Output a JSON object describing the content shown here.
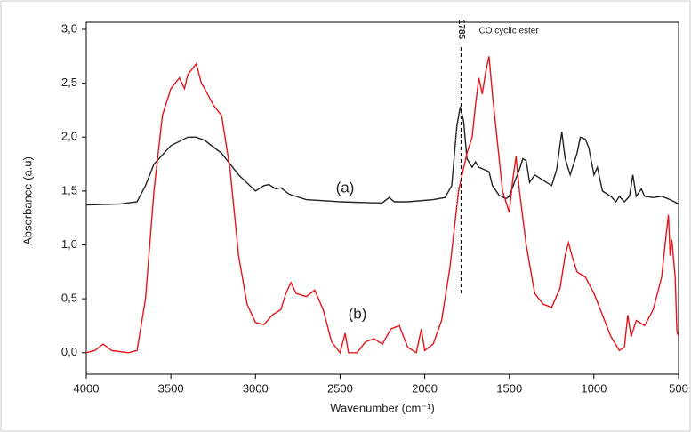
{
  "chart_data": {
    "type": "line",
    "x_label": "Wavenumber (cm⁻¹)",
    "y_label": "Absorbance (a.u)",
    "xlim": [
      4000,
      500
    ],
    "ylim": [
      -0.2,
      3.0
    ],
    "xticks": [
      4000,
      3500,
      3000,
      2500,
      2000,
      1500,
      1000,
      500
    ],
    "yticks": [
      {
        "value": 0,
        "label": "0,0"
      },
      {
        "value": 0.5,
        "label": "0,5"
      },
      {
        "value": 1,
        "label": "1,0"
      },
      {
        "value": 1.5,
        "label": "1,5"
      },
      {
        "value": 2,
        "label": "2,0"
      },
      {
        "value": 2.5,
        "label": "2,5"
      },
      {
        "value": 3,
        "label": "3,0"
      }
    ],
    "markers": [
      {
        "x": 1785,
        "label": "CO cyclic ester"
      }
    ],
    "series": [
      {
        "name": "(a)",
        "color": "#222222",
        "x": [
          4000,
          3800,
          3700,
          3650,
          3600,
          3500,
          3400,
          3350,
          3300,
          3200,
          3100,
          3000,
          2950,
          2920,
          2880,
          2850,
          2800,
          2700,
          2500,
          2300,
          2250,
          2210,
          2180,
          2100,
          1950,
          1880,
          1840,
          1810,
          1790,
          1770,
          1750,
          1720,
          1700,
          1680,
          1650,
          1620,
          1600,
          1560,
          1520,
          1500,
          1460,
          1440,
          1420,
          1400,
          1380,
          1350,
          1300,
          1250,
          1220,
          1190,
          1170,
          1140,
          1100,
          1080,
          1050,
          1030,
          1000,
          980,
          950,
          900,
          870,
          850,
          820,
          790,
          770,
          750,
          720,
          700,
          650,
          600,
          550,
          500
        ],
        "values": [
          1.37,
          1.38,
          1.4,
          1.55,
          1.75,
          1.92,
          2.0,
          2.0,
          1.97,
          1.85,
          1.65,
          1.5,
          1.55,
          1.56,
          1.52,
          1.53,
          1.47,
          1.42,
          1.4,
          1.39,
          1.39,
          1.44,
          1.4,
          1.4,
          1.42,
          1.44,
          1.55,
          2.1,
          2.28,
          2.15,
          1.8,
          1.72,
          1.77,
          1.72,
          1.7,
          1.68,
          1.55,
          1.46,
          1.43,
          1.45,
          1.62,
          1.7,
          1.8,
          1.78,
          1.58,
          1.65,
          1.6,
          1.55,
          1.7,
          2.05,
          1.8,
          1.65,
          1.85,
          2.0,
          1.98,
          1.9,
          1.65,
          1.72,
          1.5,
          1.45,
          1.4,
          1.45,
          1.4,
          1.45,
          1.65,
          1.45,
          1.52,
          1.45,
          1.44,
          1.45,
          1.42,
          1.38
        ]
      },
      {
        "name": "(b)",
        "color": "#e8141b",
        "x": [
          4000,
          3950,
          3900,
          3850,
          3750,
          3700,
          3650,
          3600,
          3550,
          3500,
          3450,
          3420,
          3400,
          3380,
          3350,
          3320,
          3300,
          3250,
          3200,
          3150,
          3100,
          3050,
          3000,
          2950,
          2900,
          2850,
          2820,
          2790,
          2760,
          2700,
          2650,
          2600,
          2550,
          2500,
          2470,
          2450,
          2400,
          2350,
          2300,
          2250,
          2200,
          2150,
          2100,
          2050,
          2020,
          2000,
          1950,
          1900,
          1850,
          1800,
          1750,
          1720,
          1700,
          1680,
          1660,
          1640,
          1620,
          1600,
          1570,
          1540,
          1520,
          1500,
          1480,
          1460,
          1440,
          1400,
          1350,
          1300,
          1250,
          1200,
          1170,
          1150,
          1130,
          1100,
          1050,
          1000,
          950,
          900,
          850,
          820,
          800,
          780,
          750,
          700,
          650,
          600,
          580,
          560,
          550,
          540,
          520,
          510,
          500
        ],
        "values": [
          0.0,
          0.02,
          0.08,
          0.02,
          0.0,
          0.02,
          0.5,
          1.5,
          2.2,
          2.45,
          2.55,
          2.45,
          2.58,
          2.62,
          2.68,
          2.5,
          2.45,
          2.3,
          2.2,
          1.7,
          0.9,
          0.45,
          0.28,
          0.26,
          0.35,
          0.4,
          0.55,
          0.65,
          0.55,
          0.52,
          0.58,
          0.4,
          0.1,
          0.0,
          0.18,
          0.0,
          0.0,
          0.1,
          0.13,
          0.08,
          0.22,
          0.25,
          0.05,
          0.0,
          0.22,
          0.02,
          0.08,
          0.3,
          0.8,
          1.5,
          1.85,
          2.0,
          2.3,
          2.55,
          2.4,
          2.6,
          2.75,
          2.4,
          1.95,
          1.5,
          1.4,
          1.3,
          1.6,
          1.82,
          1.5,
          1.0,
          0.55,
          0.45,
          0.42,
          0.6,
          0.9,
          1.02,
          0.9,
          0.75,
          0.7,
          0.55,
          0.35,
          0.15,
          0.02,
          0.05,
          0.35,
          0.15,
          0.3,
          0.25,
          0.4,
          0.7,
          1.0,
          1.28,
          0.9,
          1.05,
          0.7,
          0.2,
          0.15
        ]
      }
    ]
  }
}
